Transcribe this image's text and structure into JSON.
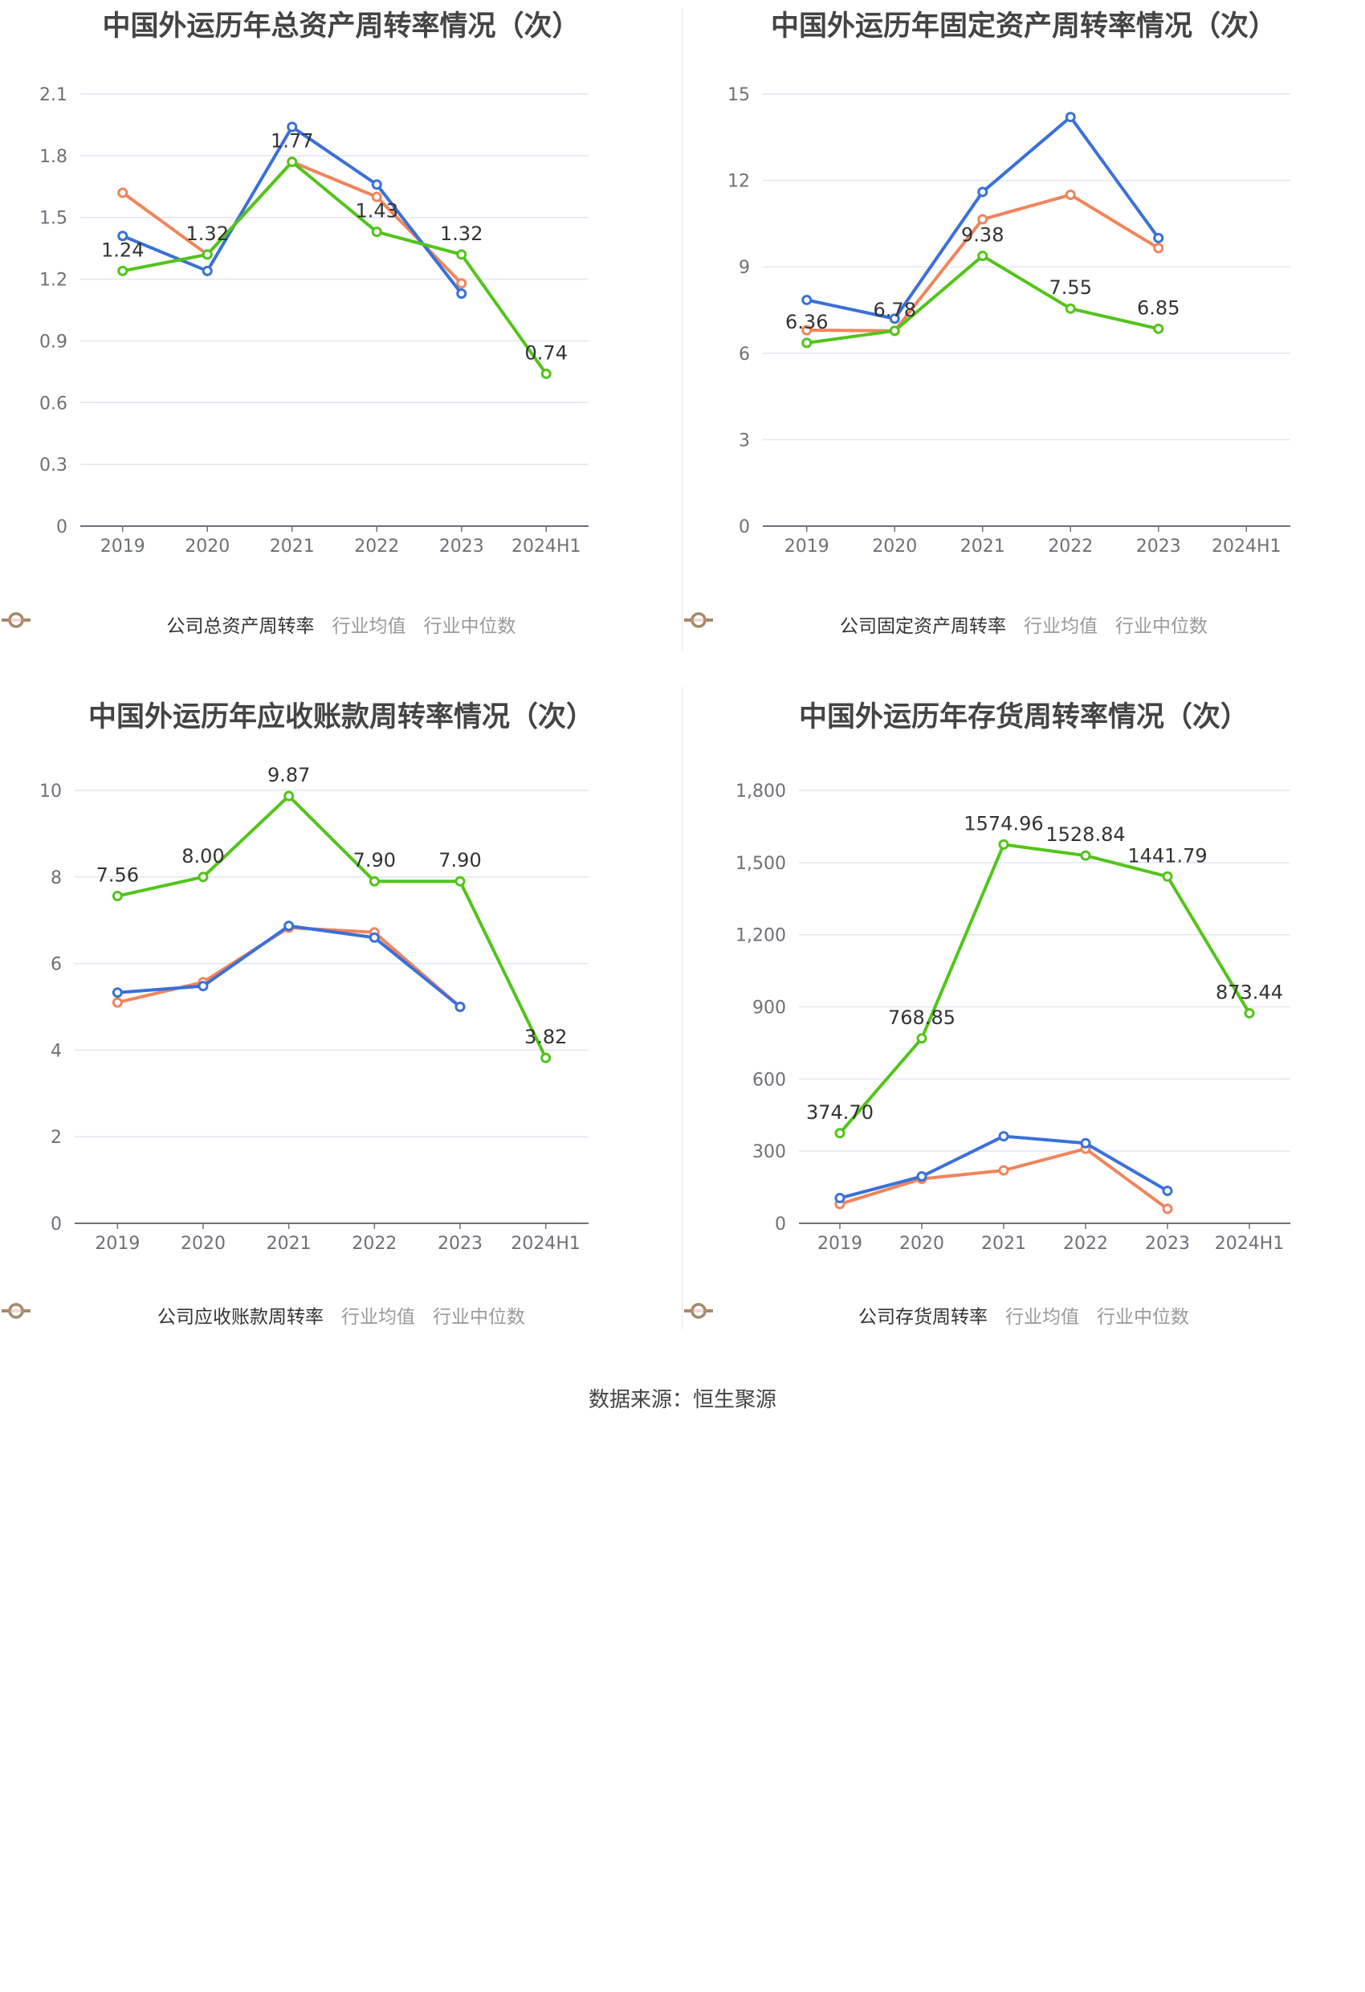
{
  "source": "数据来源：恒生聚源",
  "charts": [
    {
      "title": "中国外运历年总资产周转率情况（次）",
      "categories": [
        "2019",
        "2020",
        "2021",
        "2022",
        "2023",
        "2024H1"
      ],
      "ylim": [
        0,
        2.1
      ],
      "yticks": [
        "0",
        "0.3",
        "0.6",
        "0.9",
        "1.2",
        "1.5",
        "1.8",
        "2.1"
      ],
      "legend": [
        "公司总资产周转率",
        "行业均值",
        "行业中位数"
      ],
      "series": [
        {
          "name": "公司总资产周转率",
          "color": "#52c41a",
          "values": [
            1.24,
            1.32,
            1.77,
            1.43,
            1.32,
            0.74
          ],
          "labels": [
            "1.24",
            "1.32",
            "1.77",
            "1.43",
            "1.32",
            "0.74"
          ]
        },
        {
          "name": "行业均值",
          "color": "#3a70d9",
          "values": [
            1.41,
            1.24,
            1.94,
            1.66,
            1.13,
            null
          ]
        },
        {
          "name": "行业中位数",
          "color": "#f0845a",
          "values": [
            1.62,
            1.32,
            1.77,
            1.6,
            1.18,
            null
          ]
        }
      ]
    },
    {
      "title": "中国外运历年固定资产周转率情况（次）",
      "categories": [
        "2019",
        "2020",
        "2021",
        "2022",
        "2023",
        "2024H1"
      ],
      "ylim": [
        0,
        15
      ],
      "yticks": [
        "0",
        "3",
        "6",
        "9",
        "12",
        "15"
      ],
      "legend": [
        "公司固定资产周转率",
        "行业均值",
        "行业中位数"
      ],
      "series": [
        {
          "name": "公司固定资产周转率",
          "color": "#52c41a",
          "values": [
            6.36,
            6.78,
            9.38,
            7.55,
            6.85,
            null
          ],
          "labels": [
            "6.36",
            "6.78",
            "9.38",
            "7.55",
            "6.85",
            ""
          ]
        },
        {
          "name": "行业均值",
          "color": "#3a70d9",
          "values": [
            7.85,
            7.2,
            11.6,
            14.2,
            10.0,
            null
          ]
        },
        {
          "name": "行业中位数",
          "color": "#f0845a",
          "values": [
            6.8,
            6.78,
            10.65,
            11.5,
            9.65,
            null
          ]
        }
      ]
    },
    {
      "title": "中国外运历年应收账款周转率情况（次）",
      "categories": [
        "2019",
        "2020",
        "2021",
        "2022",
        "2023",
        "2024H1"
      ],
      "ylim": [
        0,
        10
      ],
      "yticks": [
        "0",
        "2",
        "4",
        "6",
        "8",
        "10"
      ],
      "legend": [
        "公司应收账款周转率",
        "行业均值",
        "行业中位数"
      ],
      "series": [
        {
          "name": "公司应收账款周转率",
          "color": "#52c41a",
          "values": [
            7.56,
            8.0,
            9.87,
            7.9,
            7.9,
            3.82
          ],
          "labels": [
            "7.56",
            "8.00",
            "9.87",
            "7.90",
            "7.90",
            "3.82"
          ]
        },
        {
          "name": "行业均值",
          "color": "#3a70d9",
          "values": [
            5.33,
            5.48,
            6.87,
            6.6,
            5.0,
            null
          ]
        },
        {
          "name": "行业中位数",
          "color": "#f0845a",
          "values": [
            5.1,
            5.57,
            6.83,
            6.72,
            5.0,
            null
          ]
        }
      ]
    },
    {
      "title": "中国外运历年存货周转率情况（次）",
      "categories": [
        "2019",
        "2020",
        "2021",
        "2022",
        "2023",
        "2024H1"
      ],
      "ylim": [
        0,
        1800
      ],
      "yticks": [
        "0",
        "300",
        "600",
        "900",
        "1,200",
        "1,500",
        "1,800"
      ],
      "legend": [
        "公司存货周转率",
        "行业均值",
        "行业中位数"
      ],
      "series": [
        {
          "name": "公司存货周转率",
          "color": "#52c41a",
          "values": [
            374.7,
            768.85,
            1574.96,
            1528.84,
            1441.79,
            873.44
          ],
          "labels": [
            "374.70",
            "768.85",
            "1574.96",
            "1528.84",
            "1441.79",
            "873.44"
          ]
        },
        {
          "name": "行业均值",
          "color": "#3a70d9",
          "values": [
            105,
            195,
            362,
            333,
            135,
            null
          ]
        },
        {
          "name": "行业中位数",
          "color": "#f0845a",
          "values": [
            80,
            185,
            220,
            310,
            60,
            null
          ]
        }
      ]
    }
  ]
}
